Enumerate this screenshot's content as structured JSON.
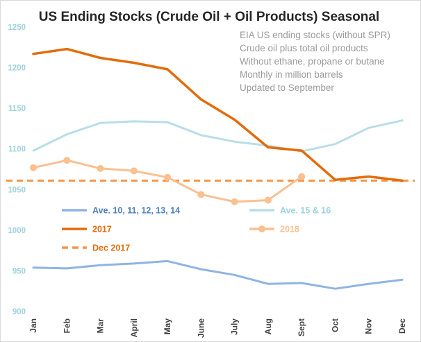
{
  "chart_data": {
    "type": "line",
    "title": "US Ending Stocks (Crude Oil + Oil Products) Seasonal",
    "annotation": [
      "EIA US ending stocks (without SPR)",
      "Crude oil plus total oil products",
      "Without ethane, propane or butane",
      "Monthly  in million barrels",
      "Updated to September"
    ],
    "categories": [
      "Jan",
      "Feb",
      "Mar",
      "April",
      "May",
      "June",
      "July",
      "Aug",
      "Sept",
      "Oct",
      "Nov",
      "Dec"
    ],
    "ylim": [
      900,
      1250
    ],
    "yticks": [
      "900",
      "950",
      "1000",
      "1050",
      "1100",
      "1150",
      "1200",
      "1250"
    ],
    "grid": false,
    "series": [
      {
        "name": "Ave. 10, 11, 12, 13, 14",
        "color": "#8eb4e3",
        "style": "solid",
        "values": [
          954,
          953,
          957,
          959,
          962,
          952,
          945,
          934,
          935,
          928,
          934,
          939
        ]
      },
      {
        "name": "Ave. 15 & 16",
        "color": "#b7dee8",
        "style": "solid",
        "values": [
          1098,
          1118,
          1132,
          1134,
          1133,
          1117,
          1109,
          1104,
          1097,
          1106,
          1126,
          1135
        ]
      },
      {
        "name": "2017",
        "color": "#e36c0a",
        "style": "solid",
        "values": [
          1217,
          1223,
          1212,
          1206,
          1198,
          1161,
          1136,
          1102,
          1098,
          1062,
          1066,
          1061
        ]
      },
      {
        "name": "2018",
        "color": "#fac090",
        "style": "markers",
        "values": [
          1077,
          1086,
          1076,
          1073,
          1065,
          1044,
          1035,
          1037,
          1066,
          null,
          null,
          null
        ]
      },
      {
        "name": "Dec 2017",
        "color": "#f79646",
        "style": "dashed",
        "values": [
          1061,
          1061,
          1061,
          1061,
          1061,
          1061,
          1061,
          1061,
          1061,
          1061,
          1061,
          1061
        ]
      }
    ]
  }
}
